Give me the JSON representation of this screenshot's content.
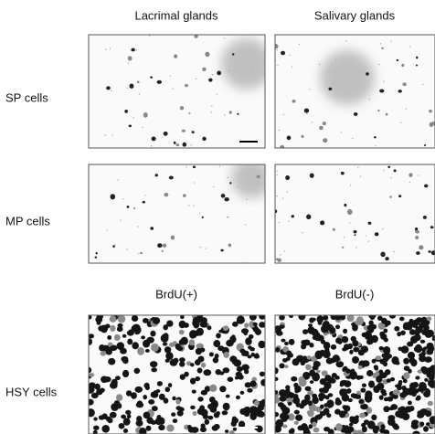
{
  "columns": [
    "Lacrimal glands",
    "Salivary glands"
  ],
  "rows": [
    "SP cells",
    "MP cells",
    "HSY cells"
  ],
  "subcolumns": [
    "BrdU(+)",
    "BrdU(-)"
  ]
}
